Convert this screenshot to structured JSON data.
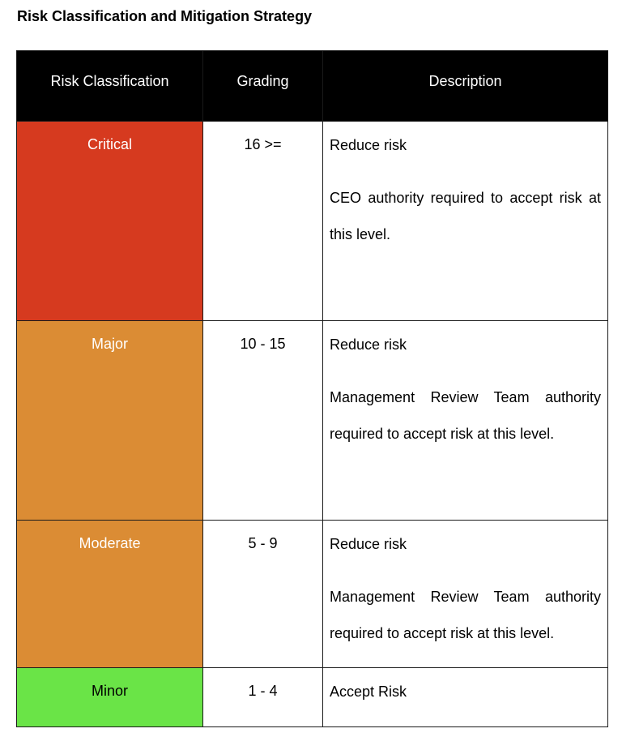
{
  "title": "Risk Classification and Mitigation Strategy",
  "table": {
    "headers": [
      "Risk Classification",
      "Grading",
      "Description"
    ],
    "rows": [
      {
        "classification": "Critical",
        "grading": "16 >=",
        "color": "#d63a1f",
        "text_color": "#ffffff",
        "action": "Reduce risk",
        "detail": "CEO authority required to accept risk at this level."
      },
      {
        "classification": "Major",
        "grading": "10 - 15",
        "color": "#db8c34",
        "text_color": "#ffffff",
        "action": "Reduce risk",
        "detail": "Management Review Team authority required to accept risk at this level."
      },
      {
        "classification": "Moderate",
        "grading": "5 - 9",
        "color": "#db8c34",
        "text_color": "#ffffff",
        "action": "Reduce risk",
        "detail": "Management Review Team authority required to accept risk at this level."
      },
      {
        "classification": "Minor",
        "grading": "1 - 4",
        "color": "#6ae447",
        "text_color": "#000000",
        "action": "Accept Risk",
        "detail": ""
      }
    ]
  }
}
